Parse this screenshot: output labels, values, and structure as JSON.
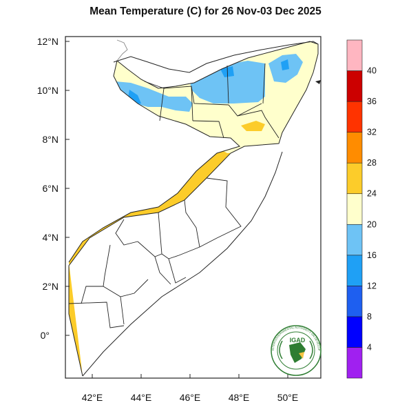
{
  "title": "Mean Temperature (C) for 26 Nov-03 Dec 2025",
  "map": {
    "lat_ticks": [
      "12°N",
      "10°N",
      "8°N",
      "6°N",
      "4°N",
      "2°N",
      "0°"
    ],
    "lon_ticks": [
      "42°E",
      "44°E",
      "46°E",
      "48°E",
      "50°E"
    ],
    "lat_range": [
      -1.7,
      12.3
    ],
    "lon_range": [
      41.0,
      51.6
    ]
  },
  "colorbar": {
    "labels": [
      "4",
      "8",
      "12",
      "16",
      "20",
      "24",
      "28",
      "32",
      "36",
      "40"
    ],
    "colors": [
      "#a020f0",
      "#0000ff",
      "#1e5ff0",
      "#1fa0f5",
      "#6ec3f5",
      "#ffffcc",
      "#fccc2a",
      "#ff8c00",
      "#ff3300",
      "#cc0000",
      "#ffb6c1"
    ]
  },
  "logo": {
    "text": "IGAD",
    "ring_text": "INTERGOVERNMENTAL AUTHORITY ON DEVELOPMENT"
  },
  "colors": {
    "below_20": "#6ec3f5",
    "from_20_to_24": "#ffffcc",
    "from_24_to_28": "#fccc2a"
  }
}
